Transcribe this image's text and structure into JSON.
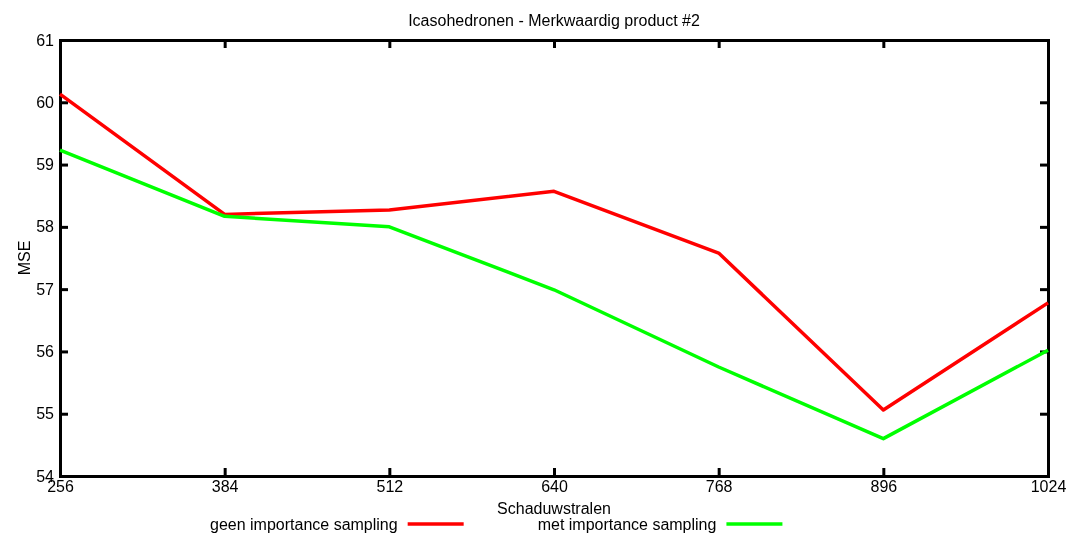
{
  "chart_data": {
    "type": "line",
    "title": "Icasohedronen - Merkwaardig product #2",
    "xlabel": "Schaduwstralen",
    "ylabel": "MSE",
    "x": [
      256,
      384,
      512,
      640,
      768,
      896,
      1024
    ],
    "series": [
      {
        "name": "geen importance sampling",
        "color": "#ff0000",
        "values": [
          60.13,
          58.2,
          58.27,
          58.57,
          57.58,
          55.06,
          56.78
        ]
      },
      {
        "name": "met importance sampling",
        "color": "#00ff00",
        "values": [
          59.23,
          58.17,
          58.0,
          56.99,
          55.75,
          54.6,
          56.02
        ]
      }
    ],
    "xlim": [
      256,
      1024
    ],
    "xticks": [
      256,
      384,
      512,
      640,
      768,
      896,
      1024
    ],
    "ylim": [
      54,
      61
    ],
    "yticks": [
      54,
      55,
      56,
      57,
      58,
      59,
      60,
      61
    ],
    "grid": false,
    "legend": "bottom",
    "marker": "none",
    "line_style": "solid"
  }
}
